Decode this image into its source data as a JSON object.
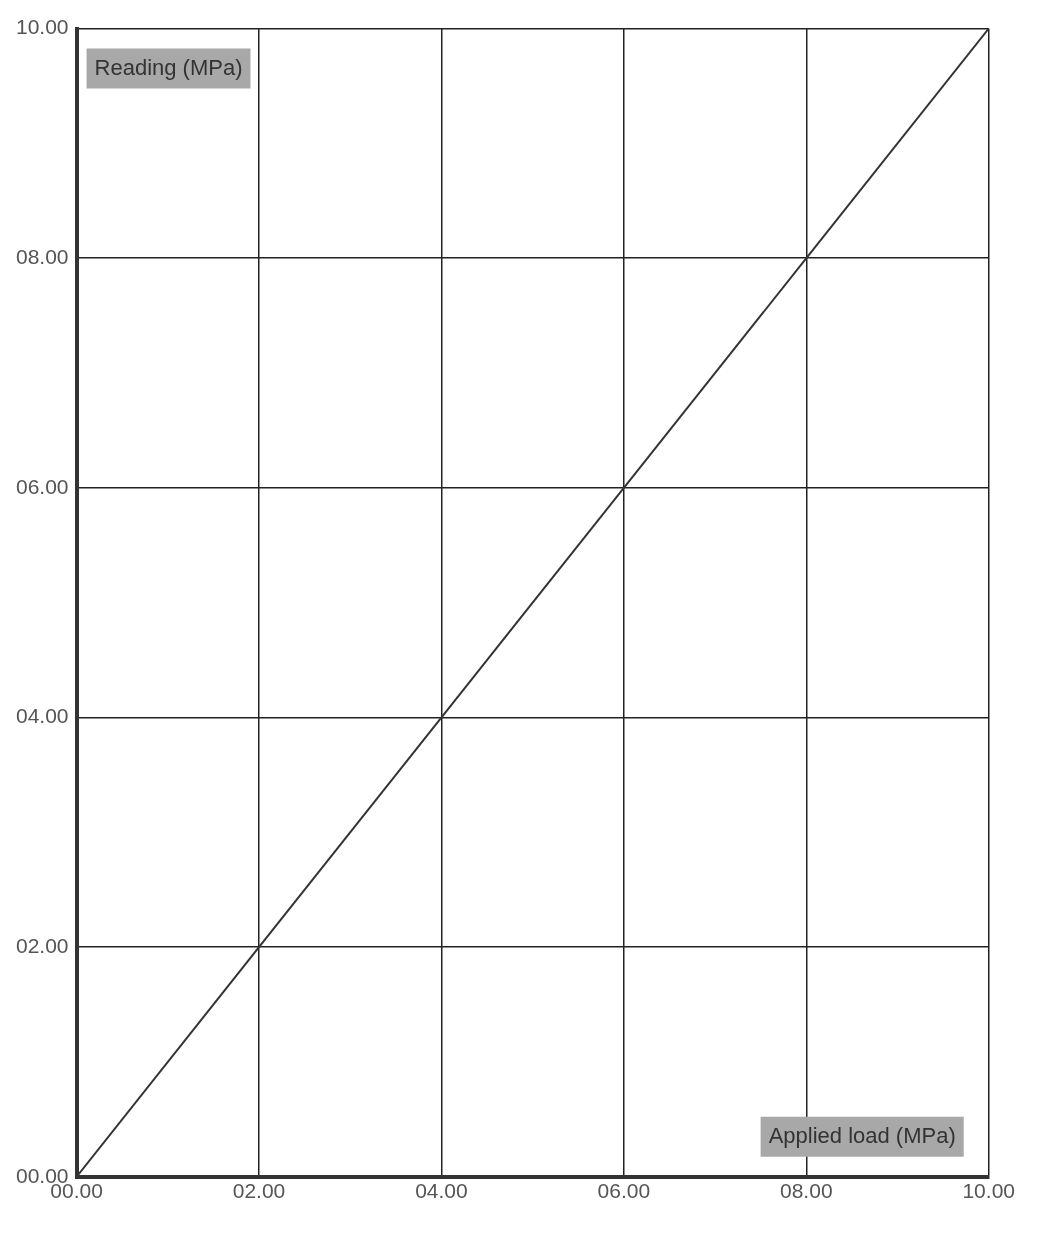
{
  "chart_data": {
    "type": "line",
    "xlabel": "Applied load (MPa)",
    "ylabel": "Reading (MPa)",
    "x": [
      0,
      10
    ],
    "series": [
      {
        "color": "#333333",
        "values": [
          0,
          10
        ]
      }
    ],
    "xlim": [
      0,
      10
    ],
    "ylim": [
      0,
      10
    ],
    "xticks": [
      {
        "value": 0,
        "label": "00.00"
      },
      {
        "value": 2,
        "label": "02.00"
      },
      {
        "value": 4,
        "label": "04.00"
      },
      {
        "value": 6,
        "label": "06.00"
      },
      {
        "value": 8,
        "label": "08.00"
      },
      {
        "value": 10,
        "label": "10.00"
      }
    ],
    "yticks": [
      {
        "value": 0,
        "label": "00.00"
      },
      {
        "value": 2,
        "label": "02.00"
      },
      {
        "value": 4,
        "label": "04.00"
      },
      {
        "value": 6,
        "label": "06.00"
      },
      {
        "value": 8,
        "label": "08.00"
      },
      {
        "value": 10,
        "label": "10.00"
      }
    ],
    "grid": true,
    "legend": false,
    "marker": "none",
    "line_style": "solid"
  }
}
